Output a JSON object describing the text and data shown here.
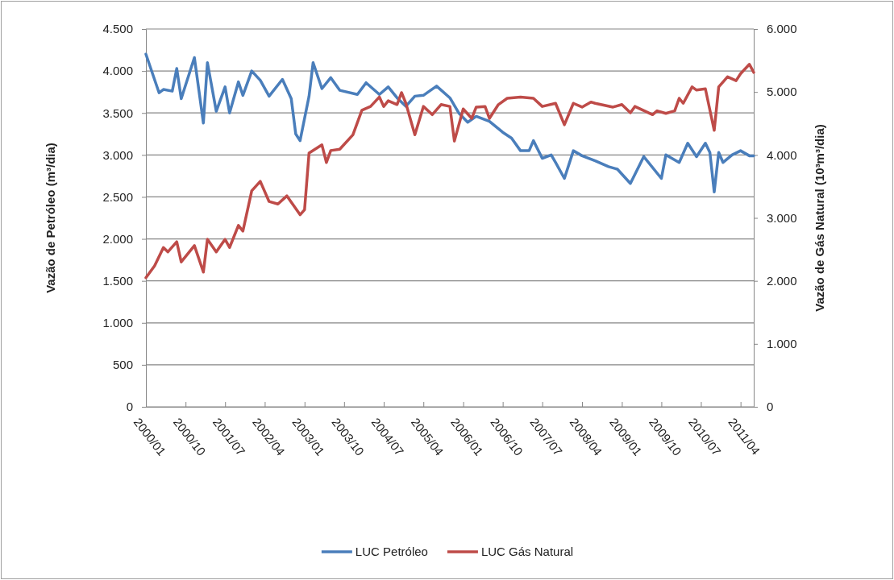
{
  "chart_data": {
    "type": "line",
    "xlim": [
      "2000-01",
      "2011-07"
    ],
    "xticks": [
      {
        "value": "2000-01",
        "label": "2000/01"
      },
      {
        "value": "2000-10",
        "label": "2000/10"
      },
      {
        "value": "2001-07",
        "label": "2001/07"
      },
      {
        "value": "2002-04",
        "label": "2002/04"
      },
      {
        "value": "2003-01",
        "label": "2003/01"
      },
      {
        "value": "2003-10",
        "label": "2003/10"
      },
      {
        "value": "2004-07",
        "label": "2004/07"
      },
      {
        "value": "2005-04",
        "label": "2005/04"
      },
      {
        "value": "2006-01",
        "label": "2006/01"
      },
      {
        "value": "2006-10",
        "label": "2006/10"
      },
      {
        "value": "2007-07",
        "label": "2007/07"
      },
      {
        "value": "2008-04",
        "label": "2008/04"
      },
      {
        "value": "2009-01",
        "label": "2009/01"
      },
      {
        "value": "2009-10",
        "label": "2009/10"
      },
      {
        "value": "2010-07",
        "label": "2010/07"
      },
      {
        "value": "2011-04",
        "label": "2011/04"
      }
    ],
    "ylabel": "Vazão de Petróleo (m³/dia)",
    "y2label": "Vazão de Gás Natural (10³m³/dia)",
    "ylim": [
      0,
      4500
    ],
    "yticks": [
      0,
      500,
      {
        "value": 1000,
        "label": "1.000"
      },
      {
        "value": 1500,
        "label": "1.500"
      },
      {
        "value": 2000,
        "label": "2.000"
      },
      {
        "value": 2500,
        "label": "2.500"
      },
      {
        "value": 3000,
        "label": "3.000"
      },
      {
        "value": 3500,
        "label": "3.500"
      },
      {
        "value": 4000,
        "label": "4.000"
      },
      {
        "value": 4500,
        "label": "4.500"
      }
    ],
    "y2lim": [
      0,
      6000
    ],
    "y2ticks": [
      0,
      {
        "value": 1000,
        "label": "1.000"
      },
      {
        "value": 2000,
        "label": "2.000"
      },
      {
        "value": 3000,
        "label": "3.000"
      },
      {
        "value": 4000,
        "label": "4.000"
      },
      {
        "value": 5000,
        "label": "5.000"
      },
      {
        "value": 6000,
        "label": "6.000"
      }
    ],
    "grid": "y",
    "legend": "bottom",
    "marker": "none",
    "line_style": "solid",
    "series": [
      {
        "name": "LUC Petróleo",
        "color": "#4a7ebb",
        "x": [
          "2000-01",
          "2000-04",
          "2000-05",
          "2000-07",
          "2000-08",
          "2000-09",
          "2000-12",
          "2001-02",
          "2001-03",
          "2001-05",
          "2001-07",
          "2001-08",
          "2001-10",
          "2001-11",
          "2002-01",
          "2002-03",
          "2002-05",
          "2002-08",
          "2002-10",
          "2002-11",
          "2002-12",
          "2003-02",
          "2003-03",
          "2003-05",
          "2003-07",
          "2003-09",
          "2004-01",
          "2004-03",
          "2004-06",
          "2004-08",
          "2004-10",
          "2004-12",
          "2005-02",
          "2005-04",
          "2005-07",
          "2005-10",
          "2005-12",
          "2006-02",
          "2006-04",
          "2006-07",
          "2006-10",
          "2006-12",
          "2007-02",
          "2007-04",
          "2007-05",
          "2007-07",
          "2007-09",
          "2007-10",
          "2007-12",
          "2008-02",
          "2008-04",
          "2008-07",
          "2008-10",
          "2008-12",
          "2009-03",
          "2009-06",
          "2009-10",
          "2009-11",
          "2010-02",
          "2010-04",
          "2010-06",
          "2010-08",
          "2010-09",
          "2010-10",
          "2010-11",
          "2010-12",
          "2011-02",
          "2011-04",
          "2011-06",
          "2011-07"
        ],
        "values": [
          4200,
          3740,
          3780,
          3760,
          4030,
          3670,
          4160,
          3380,
          4100,
          3520,
          3810,
          3500,
          3870,
          3710,
          4000,
          3890,
          3700,
          3900,
          3670,
          3250,
          3170,
          3700,
          4100,
          3790,
          3920,
          3770,
          3720,
          3860,
          3720,
          3810,
          3680,
          3580,
          3700,
          3710,
          3820,
          3680,
          3500,
          3390,
          3460,
          3400,
          3270,
          3200,
          3050,
          3050,
          3170,
          2960,
          3000,
          2910,
          2720,
          3050,
          2990,
          2930,
          2860,
          2830,
          2660,
          2980,
          2720,
          3000,
          2910,
          3140,
          2980,
          3140,
          3030,
          2560,
          3030,
          2910,
          3000,
          3050,
          2990,
          2990
        ]
      },
      {
        "name": "LUC Gás Natural",
        "color": "#be4b48",
        "axis": "y2",
        "x": [
          "2000-01",
          "2000-03",
          "2000-05",
          "2000-06",
          "2000-08",
          "2000-09",
          "2000-12",
          "2001-02",
          "2001-03",
          "2001-05",
          "2001-07",
          "2001-08",
          "2001-10",
          "2001-11",
          "2002-01",
          "2002-03",
          "2002-05",
          "2002-07",
          "2002-09",
          "2002-12",
          "2003-01",
          "2003-02",
          "2003-05",
          "2003-06",
          "2003-07",
          "2003-09",
          "2003-12",
          "2004-02",
          "2004-04",
          "2004-06",
          "2004-07",
          "2004-08",
          "2004-10",
          "2004-11",
          "2004-12",
          "2005-02",
          "2005-04",
          "2005-06",
          "2005-08",
          "2005-10",
          "2005-11",
          "2006-01",
          "2006-03",
          "2006-04",
          "2006-06",
          "2006-07",
          "2006-09",
          "2006-11",
          "2007-02",
          "2007-05",
          "2007-07",
          "2007-10",
          "2007-12",
          "2008-02",
          "2008-04",
          "2008-06",
          "2008-07",
          "2008-11",
          "2009-01",
          "2009-03",
          "2009-04",
          "2009-08",
          "2009-09",
          "2009-11",
          "2010-01",
          "2010-02",
          "2010-03",
          "2010-05",
          "2010-06",
          "2010-08",
          "2010-10",
          "2010-11",
          "2011-01",
          "2011-03",
          "2011-04",
          "2011-06",
          "2011-07"
        ],
        "values": [
          2050,
          2240,
          2530,
          2460,
          2620,
          2300,
          2560,
          2140,
          2660,
          2460,
          2660,
          2530,
          2880,
          2790,
          3430,
          3580,
          3260,
          3220,
          3350,
          3050,
          3130,
          4030,
          4160,
          3880,
          4070,
          4090,
          4320,
          4710,
          4770,
          4920,
          4770,
          4860,
          4800,
          4990,
          4820,
          4320,
          4770,
          4640,
          4800,
          4770,
          4220,
          4730,
          4580,
          4760,
          4770,
          4580,
          4800,
          4900,
          4920,
          4900,
          4770,
          4820,
          4480,
          4820,
          4760,
          4840,
          4820,
          4760,
          4800,
          4670,
          4770,
          4640,
          4700,
          4660,
          4700,
          4900,
          4820,
          5080,
          5030,
          5050,
          4390,
          5080,
          5240,
          5180,
          5290,
          5440,
          5310
        ]
      }
    ]
  }
}
